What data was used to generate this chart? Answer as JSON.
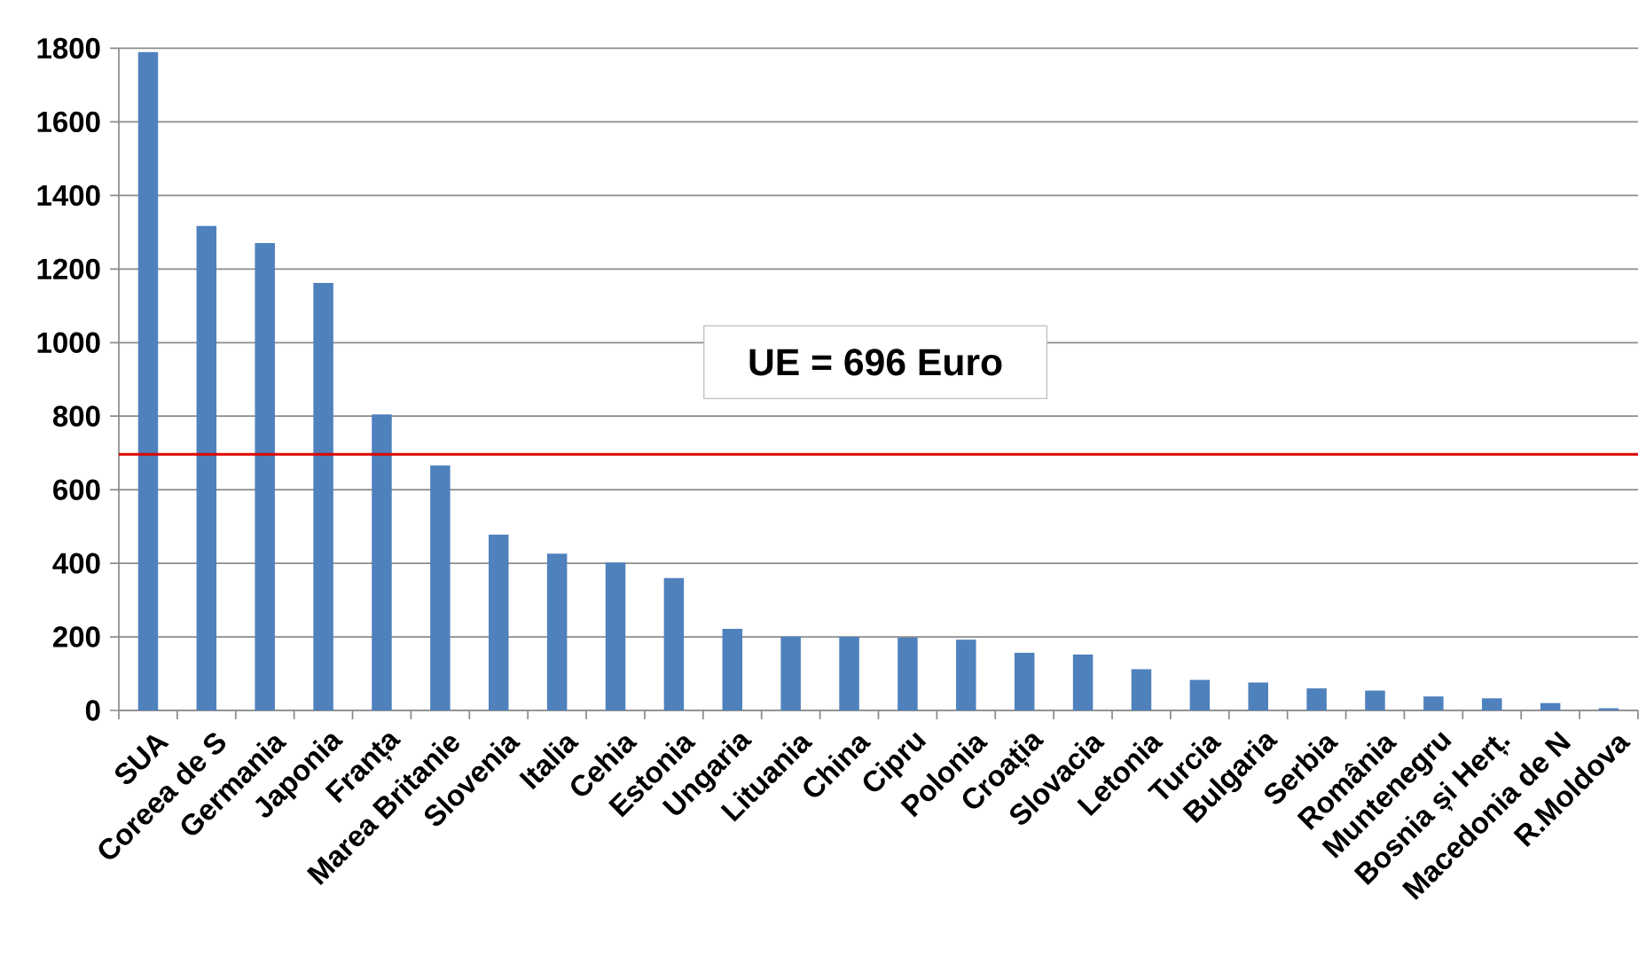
{
  "chart_data": {
    "type": "bar",
    "categories": [
      "SUA",
      "Coreea de S",
      "Germania",
      "Japonia",
      "Franța",
      "Marea Britanie",
      "Slovenia",
      "Italia",
      "Cehia",
      "Estonia",
      "Ungaria",
      "Lituania",
      "China",
      "Cipru",
      "Polonia",
      "Croația",
      "Slovacia",
      "Letonia",
      "Turcia",
      "Bulgaria",
      "Serbia",
      "România",
      "Muntenegru",
      "Bosnia și Herț.",
      "Macedonia de N",
      "R.Moldova"
    ],
    "values": [
      1790,
      1317,
      1271,
      1162,
      805,
      666,
      478,
      426,
      402,
      360,
      222,
      201,
      200,
      198,
      192,
      157,
      152,
      112,
      83,
      76,
      60,
      54,
      38,
      33,
      20,
      6
    ],
    "color": "#4f81bd",
    "ylim": [
      0,
      1800
    ],
    "yticks": [
      0,
      200,
      400,
      600,
      800,
      1000,
      1200,
      1400,
      1600,
      1800
    ],
    "grid": "y",
    "ref_lines": [
      {
        "axis": "y",
        "value": 696,
        "label": "UE = 696 Euro",
        "color": "#dd0000"
      }
    ]
  }
}
